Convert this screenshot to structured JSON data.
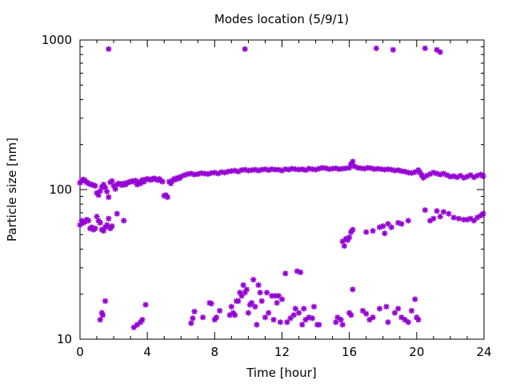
{
  "chart_data": {
    "type": "scatter",
    "title": "Modes location (5/9/1)",
    "xlabel": "Time [hour]",
    "ylabel": "Particle size [nm]",
    "xlim": [
      0,
      24
    ],
    "ylim": [
      10,
      1000
    ],
    "yscale": "log",
    "x_ticks": [
      0,
      4,
      8,
      12,
      16,
      20,
      24
    ],
    "x_tick_labels": [
      "0",
      "4",
      "8",
      "12",
      "16",
      "20",
      "24"
    ],
    "y_ticks": [
      10,
      100,
      1000
    ],
    "y_tick_labels": [
      "10",
      "100",
      "1000"
    ],
    "grid": false,
    "marker": "asterisk",
    "color": "#9400d3",
    "series": [
      {
        "points": [
          [
            0.0,
            111
          ],
          [
            0.1,
            114
          ],
          [
            0.2,
            117
          ],
          [
            0.3,
            115
          ],
          [
            0.4,
            112
          ],
          [
            0.5,
            110
          ],
          [
            0.6,
            109
          ],
          [
            0.7,
            108
          ],
          [
            0.8,
            107
          ],
          [
            0.9,
            106
          ],
          [
            1.0,
            95
          ],
          [
            1.1,
            92
          ],
          [
            1.2,
            98
          ],
          [
            1.3,
            104
          ],
          [
            1.4,
            108
          ],
          [
            1.5,
            103
          ],
          [
            1.6,
            97
          ],
          [
            1.7,
            89
          ],
          [
            1.8,
            112
          ],
          [
            1.9,
            114
          ],
          [
            2.0,
            106
          ],
          [
            2.1,
            101
          ],
          [
            2.2,
            108
          ],
          [
            2.3,
            110
          ],
          [
            2.4,
            109
          ],
          [
            2.5,
            107
          ],
          [
            2.6,
            110
          ],
          [
            2.7,
            108
          ],
          [
            2.8,
            111
          ],
          [
            2.9,
            112
          ],
          [
            3.0,
            113
          ],
          [
            3.1,
            114
          ],
          [
            3.2,
            113
          ],
          [
            3.3,
            115
          ],
          [
            3.4,
            108
          ],
          [
            3.5,
            112
          ],
          [
            3.6,
            110
          ],
          [
            3.7,
            116
          ],
          [
            3.8,
            113
          ],
          [
            3.9,
            117
          ],
          [
            4.0,
            118
          ],
          [
            4.1,
            117
          ],
          [
            4.2,
            116
          ],
          [
            4.3,
            118
          ],
          [
            4.4,
            119
          ],
          [
            4.5,
            117
          ],
          [
            4.6,
            116
          ],
          [
            4.7,
            118
          ],
          [
            4.8,
            115
          ],
          [
            4.9,
            113
          ],
          [
            5.0,
            91
          ],
          [
            5.1,
            92
          ],
          [
            5.2,
            89
          ],
          [
            5.3,
            113
          ],
          [
            5.4,
            110
          ],
          [
            5.5,
            115
          ],
          [
            5.6,
            118
          ],
          [
            5.7,
            117
          ],
          [
            5.8,
            120
          ],
          [
            5.9,
            119
          ],
          [
            6.0,
            122
          ],
          [
            6.2,
            125
          ],
          [
            6.4,
            127
          ],
          [
            6.6,
            128
          ],
          [
            6.8,
            126
          ],
          [
            7.0,
            127
          ],
          [
            7.2,
            129
          ],
          [
            7.4,
            128
          ],
          [
            7.6,
            127
          ],
          [
            7.8,
            129
          ],
          [
            8.0,
            130
          ],
          [
            8.2,
            128
          ],
          [
            8.4,
            131
          ],
          [
            8.6,
            130
          ],
          [
            8.8,
            132
          ],
          [
            9.0,
            133
          ],
          [
            9.2,
            134
          ],
          [
            9.4,
            132
          ],
          [
            9.6,
            135
          ],
          [
            9.8,
            136
          ],
          [
            10.0,
            134
          ],
          [
            10.2,
            135
          ],
          [
            10.4,
            136
          ],
          [
            10.6,
            134
          ],
          [
            10.8,
            136
          ],
          [
            11.0,
            137
          ],
          [
            11.2,
            135
          ],
          [
            11.4,
            137
          ],
          [
            11.6,
            136
          ],
          [
            11.8,
            136
          ],
          [
            12.0,
            134
          ],
          [
            12.2,
            137
          ],
          [
            12.4,
            136
          ],
          [
            12.6,
            138
          ],
          [
            12.8,
            137
          ],
          [
            13.0,
            136
          ],
          [
            13.2,
            137
          ],
          [
            13.4,
            135
          ],
          [
            13.6,
            138
          ],
          [
            13.8,
            137
          ],
          [
            14.0,
            136
          ],
          [
            14.2,
            138
          ],
          [
            14.4,
            140
          ],
          [
            14.6,
            139
          ],
          [
            14.8,
            137
          ],
          [
            15.0,
            138
          ],
          [
            15.2,
            139
          ],
          [
            15.4,
            137
          ],
          [
            15.6,
            138
          ],
          [
            15.8,
            139
          ],
          [
            16.0,
            140
          ],
          [
            16.1,
            148
          ],
          [
            16.2,
            154
          ],
          [
            16.3,
            143
          ],
          [
            16.5,
            140
          ],
          [
            16.7,
            139
          ],
          [
            16.9,
            138
          ],
          [
            17.1,
            140
          ],
          [
            17.3,
            139
          ],
          [
            17.5,
            137
          ],
          [
            17.7,
            138
          ],
          [
            17.9,
            137
          ],
          [
            18.1,
            136
          ],
          [
            18.3,
            137
          ],
          [
            18.5,
            136
          ],
          [
            18.7,
            134
          ],
          [
            18.9,
            135
          ],
          [
            19.1,
            133
          ],
          [
            19.3,
            132
          ],
          [
            19.5,
            130
          ],
          [
            19.7,
            129
          ],
          [
            19.9,
            131
          ],
          [
            20.1,
            135
          ],
          [
            20.2,
            130
          ],
          [
            20.3,
            125
          ],
          [
            20.4,
            120
          ],
          [
            20.6,
            124
          ],
          [
            20.8,
            127
          ],
          [
            21.0,
            130
          ],
          [
            21.2,
            128
          ],
          [
            21.4,
            126
          ],
          [
            21.6,
            128
          ],
          [
            21.8,
            125
          ],
          [
            22.0,
            122
          ],
          [
            22.2,
            123
          ],
          [
            22.4,
            121
          ],
          [
            22.6,
            124
          ],
          [
            22.8,
            120
          ],
          [
            23.0,
            122
          ],
          [
            23.2,
            125
          ],
          [
            23.4,
            121
          ],
          [
            23.6,
            124
          ],
          [
            23.8,
            126
          ],
          [
            23.95,
            123
          ],
          [
            0.0,
            58
          ],
          [
            0.1,
            62
          ],
          [
            0.2,
            60
          ],
          [
            0.3,
            61
          ],
          [
            0.4,
            63
          ],
          [
            0.5,
            62
          ],
          [
            0.6,
            55
          ],
          [
            0.7,
            56
          ],
          [
            0.8,
            54
          ],
          [
            0.9,
            55
          ],
          [
            1.0,
            66
          ],
          [
            1.1,
            62
          ],
          [
            1.2,
            60
          ],
          [
            1.3,
            54
          ],
          [
            1.4,
            53
          ],
          [
            1.5,
            56
          ],
          [
            1.6,
            58
          ],
          [
            1.7,
            64
          ],
          [
            1.8,
            55
          ],
          [
            1.9,
            57
          ],
          [
            2.2,
            69
          ],
          [
            2.6,
            62
          ],
          [
            15.6,
            45
          ],
          [
            15.7,
            42
          ],
          [
            15.8,
            47
          ],
          [
            15.9,
            46
          ],
          [
            16.0,
            48
          ],
          [
            16.1,
            52
          ],
          [
            16.2,
            54
          ],
          [
            17.0,
            52
          ],
          [
            17.4,
            53
          ],
          [
            17.8,
            56
          ],
          [
            18.0,
            57
          ],
          [
            18.1,
            51
          ],
          [
            18.3,
            59
          ],
          [
            18.5,
            56
          ],
          [
            18.9,
            60
          ],
          [
            19.1,
            59
          ],
          [
            19.5,
            62
          ],
          [
            20.5,
            73
          ],
          [
            20.8,
            62
          ],
          [
            21.0,
            64
          ],
          [
            21.2,
            72
          ],
          [
            21.4,
            66
          ],
          [
            21.6,
            71
          ],
          [
            21.9,
            69
          ],
          [
            22.2,
            65
          ],
          [
            22.5,
            64
          ],
          [
            22.8,
            63
          ],
          [
            23.0,
            63
          ],
          [
            23.2,
            64
          ],
          [
            23.4,
            62
          ],
          [
            23.6,
            65
          ],
          [
            23.8,
            67
          ],
          [
            23.95,
            69
          ],
          [
            1.7,
            870
          ],
          [
            9.8,
            870
          ],
          [
            17.6,
            880
          ],
          [
            18.6,
            860
          ],
          [
            20.5,
            880
          ],
          [
            21.2,
            860
          ],
          [
            21.4,
            830
          ],
          [
            1.2,
            13.5
          ],
          [
            1.3,
            15
          ],
          [
            1.35,
            14.5
          ],
          [
            1.5,
            18
          ],
          [
            3.2,
            12
          ],
          [
            3.4,
            12.5
          ],
          [
            3.6,
            13
          ],
          [
            3.7,
            13.5
          ],
          [
            3.9,
            17
          ],
          [
            6.6,
            12.8
          ],
          [
            6.7,
            13.8
          ],
          [
            6.8,
            15.3
          ],
          [
            7.3,
            14
          ],
          [
            7.7,
            17.5
          ],
          [
            7.8,
            17.3
          ],
          [
            8.0,
            13.5
          ],
          [
            8.1,
            14
          ],
          [
            8.3,
            15.5
          ],
          [
            8.9,
            14.5
          ],
          [
            9.0,
            16.5
          ],
          [
            9.1,
            15
          ],
          [
            9.2,
            14.5
          ],
          [
            9.3,
            18
          ],
          [
            9.4,
            18
          ],
          [
            9.5,
            20.5
          ],
          [
            9.6,
            19.5
          ],
          [
            9.7,
            23
          ],
          [
            9.8,
            20.5
          ],
          [
            9.9,
            21.5
          ],
          [
            10.0,
            15
          ],
          [
            10.1,
            17
          ],
          [
            10.2,
            17.5
          ],
          [
            10.3,
            25
          ],
          [
            10.4,
            16.5
          ],
          [
            10.5,
            12.5
          ],
          [
            10.6,
            23
          ],
          [
            10.7,
            20.5
          ],
          [
            10.8,
            18
          ],
          [
            11.0,
            14
          ],
          [
            11.1,
            20.5
          ],
          [
            11.2,
            15
          ],
          [
            11.4,
            19.5
          ],
          [
            11.5,
            13.5
          ],
          [
            11.6,
            19.5
          ],
          [
            11.7,
            17.5
          ],
          [
            11.8,
            19.5
          ],
          [
            11.9,
            13
          ],
          [
            12.0,
            18.5
          ],
          [
            12.2,
            27.5
          ],
          [
            12.3,
            13
          ],
          [
            12.5,
            13.8
          ],
          [
            12.7,
            14.5
          ],
          [
            12.8,
            16
          ],
          [
            12.9,
            28.5
          ],
          [
            13.0,
            15
          ],
          [
            13.1,
            28
          ],
          [
            13.2,
            12.5
          ],
          [
            13.3,
            16
          ],
          [
            13.4,
            13.5
          ],
          [
            13.6,
            14
          ],
          [
            13.8,
            13.8
          ],
          [
            13.9,
            16.5
          ],
          [
            14.1,
            12.5
          ],
          [
            14.2,
            12.5
          ],
          [
            15.2,
            13
          ],
          [
            15.3,
            14
          ],
          [
            15.5,
            13.5
          ],
          [
            15.6,
            12.5
          ],
          [
            16.0,
            15
          ],
          [
            16.1,
            14.5
          ],
          [
            16.2,
            21.5
          ],
          [
            16.8,
            15.5
          ],
          [
            17.0,
            14.8
          ],
          [
            17.2,
            13.5
          ],
          [
            17.4,
            14
          ],
          [
            17.8,
            16
          ],
          [
            18.2,
            16.5
          ],
          [
            18.3,
            13
          ],
          [
            18.7,
            15
          ],
          [
            18.9,
            16
          ],
          [
            19.1,
            14
          ],
          [
            19.3,
            13.5
          ],
          [
            19.5,
            13
          ],
          [
            19.7,
            15.5
          ],
          [
            19.9,
            18.5
          ],
          [
            20.0,
            14
          ],
          [
            20.1,
            13.5
          ]
        ]
      }
    ]
  }
}
